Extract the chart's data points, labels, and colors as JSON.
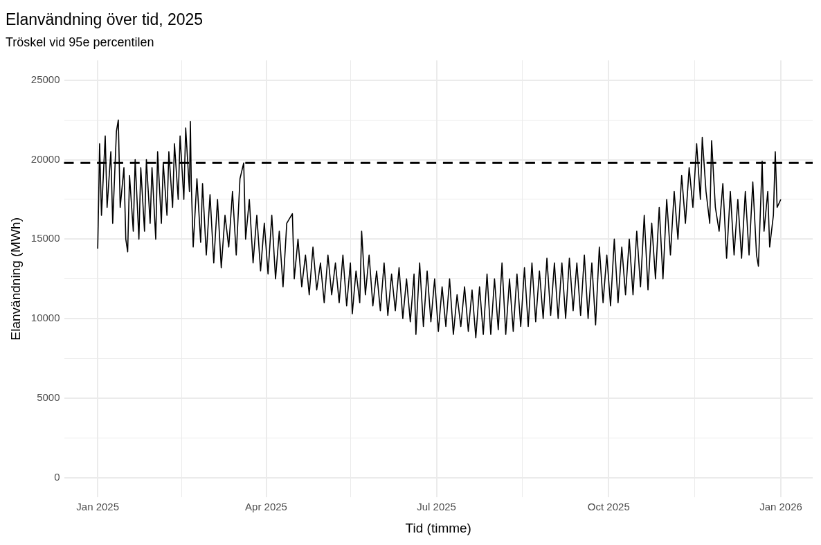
{
  "chart_data": {
    "type": "line",
    "title": "Elanvändning över tid, 2025",
    "subtitle": "Tröskel vid 95e percentilen",
    "xlabel": "Tid (timme)",
    "ylabel": "Elanvändning (MWh)",
    "xlim": [
      "2024-12-14",
      "2026-01-18"
    ],
    "ylim": [
      -1250,
      26250
    ],
    "xticks": [
      {
        "value": "2025-01-01",
        "label": "Jan 2025"
      },
      {
        "value": "2025-02-15",
        "label": null
      },
      {
        "value": "2025-04-01",
        "label": "Apr 2025"
      },
      {
        "value": "2025-05-16",
        "label": null
      },
      {
        "value": "2025-07-01",
        "label": "Jul 2025"
      },
      {
        "value": "2025-08-16",
        "label": null
      },
      {
        "value": "2025-10-01",
        "label": "Oct 2025"
      },
      {
        "value": "2025-11-16",
        "label": null
      },
      {
        "value": "2026-01-01",
        "label": "Jan 2026"
      }
    ],
    "yticks": [
      0,
      {
        "value": 2500,
        "label": null
      },
      5000,
      {
        "value": 7500,
        "label": null
      },
      10000,
      {
        "value": 12500,
        "label": null
      },
      15000,
      {
        "value": 17500,
        "label": null
      },
      20000,
      {
        "value": 22500,
        "label": null
      },
      25000
    ],
    "grid": true,
    "marker": "none",
    "line_style": "solid",
    "ref_lines": [
      {
        "axis": "y",
        "value": 19800,
        "color": "#000000",
        "line_style": "dashed"
      }
    ],
    "series": [
      {
        "color": "#000000",
        "x": [
          "2025-01-01T00:00",
          "2025-01-01T12:00",
          "2025-01-02",
          "2025-01-03",
          "2025-01-05",
          "2025-01-06",
          "2025-01-08",
          "2025-01-09",
          "2025-01-11",
          "2025-01-12",
          "2025-01-13",
          "2025-01-15",
          "2025-01-16",
          "2025-01-17",
          "2025-01-18",
          "2025-01-20",
          "2025-01-21",
          "2025-01-23",
          "2025-01-24",
          "2025-01-26",
          "2025-01-27",
          "2025-01-29",
          "2025-01-30",
          "2025-02-01",
          "2025-02-02",
          "2025-02-04",
          "2025-02-05",
          "2025-02-07",
          "2025-02-08",
          "2025-02-10",
          "2025-02-11",
          "2025-02-13",
          "2025-02-14",
          "2025-02-16",
          "2025-02-17",
          "2025-02-19",
          "2025-02-19T12:00",
          "2025-02-20",
          "2025-02-21",
          "2025-02-23",
          "2025-02-25",
          "2025-02-26",
          "2025-02-28",
          "2025-03-02",
          "2025-03-04",
          "2025-03-06",
          "2025-03-08",
          "2025-03-10",
          "2025-03-12",
          "2025-03-14",
          "2025-03-16",
          "2025-03-18",
          "2025-03-20",
          "2025-03-21",
          "2025-03-23",
          "2025-03-25",
          "2025-03-27",
          "2025-03-29",
          "2025-03-31",
          "2025-04-02",
          "2025-04-04",
          "2025-04-06",
          "2025-04-08",
          "2025-04-10",
          "2025-04-12",
          "2025-04-15",
          "2025-04-16",
          "2025-04-18",
          "2025-04-20",
          "2025-04-22",
          "2025-04-24",
          "2025-04-26",
          "2025-04-28",
          "2025-04-30",
          "2025-05-02",
          "2025-05-04",
          "2025-05-06",
          "2025-05-08",
          "2025-05-10",
          "2025-05-12",
          "2025-05-14",
          "2025-05-16",
          "2025-05-17",
          "2025-05-19",
          "2025-05-21",
          "2025-05-22",
          "2025-05-24",
          "2025-05-26",
          "2025-05-28",
          "2025-05-30",
          "2025-06-01",
          "2025-06-03",
          "2025-06-05",
          "2025-06-07",
          "2025-06-09",
          "2025-06-11",
          "2025-06-13",
          "2025-06-15",
          "2025-06-17",
          "2025-06-19",
          "2025-06-20",
          "2025-06-22",
          "2025-06-24",
          "2025-06-26",
          "2025-06-28",
          "2025-06-30",
          "2025-07-02",
          "2025-07-04",
          "2025-07-06",
          "2025-07-08",
          "2025-07-10",
          "2025-07-12",
          "2025-07-14",
          "2025-07-16",
          "2025-07-18",
          "2025-07-20",
          "2025-07-22",
          "2025-07-24",
          "2025-07-26",
          "2025-07-28",
          "2025-07-30",
          "2025-08-01",
          "2025-08-03",
          "2025-08-05",
          "2025-08-07",
          "2025-08-09",
          "2025-08-11",
          "2025-08-13",
          "2025-08-15",
          "2025-08-17",
          "2025-08-19",
          "2025-08-21",
          "2025-08-23",
          "2025-08-25",
          "2025-08-27",
          "2025-08-29",
          "2025-08-31",
          "2025-09-02",
          "2025-09-04",
          "2025-09-06",
          "2025-09-08",
          "2025-09-10",
          "2025-09-12",
          "2025-09-14",
          "2025-09-16",
          "2025-09-18",
          "2025-09-20",
          "2025-09-22",
          "2025-09-24",
          "2025-09-26",
          "2025-09-28",
          "2025-09-30",
          "2025-10-02",
          "2025-10-04",
          "2025-10-06",
          "2025-10-08",
          "2025-10-10",
          "2025-10-12",
          "2025-10-14",
          "2025-10-16",
          "2025-10-18",
          "2025-10-20",
          "2025-10-22",
          "2025-10-24",
          "2025-10-26",
          "2025-10-28",
          "2025-10-30",
          "2025-11-01",
          "2025-11-03",
          "2025-11-05",
          "2025-11-07",
          "2025-11-09",
          "2025-11-11",
          "2025-11-13",
          "2025-11-15",
          "2025-11-17",
          "2025-11-19",
          "2025-11-20",
          "2025-11-22",
          "2025-11-24",
          "2025-11-25",
          "2025-11-27",
          "2025-11-29",
          "2025-12-01",
          "2025-12-03",
          "2025-12-05",
          "2025-12-07",
          "2025-12-09",
          "2025-12-11",
          "2025-12-13",
          "2025-12-15",
          "2025-12-17",
          "2025-12-19",
          "2025-12-20",
          "2025-12-22",
          "2025-12-23",
          "2025-12-25",
          "2025-12-26",
          "2025-12-28",
          "2025-12-29",
          "2025-12-30",
          "2025-12-31T23:00"
        ],
        "values": [
          14400,
          17500,
          21000,
          16500,
          21500,
          17000,
          20500,
          16000,
          21800,
          22500,
          17000,
          19500,
          15000,
          14200,
          19000,
          15500,
          20000,
          15000,
          19500,
          15500,
          20000,
          16000,
          19500,
          15000,
          20500,
          16000,
          19800,
          16500,
          20500,
          17000,
          21000,
          17500,
          21500,
          17500,
          22000,
          18000,
          22400,
          18500,
          14500,
          18800,
          14800,
          18500,
          14000,
          17800,
          13500,
          17500,
          13200,
          16500,
          14500,
          18000,
          14000,
          18800,
          19800,
          15000,
          17500,
          13500,
          16500,
          13000,
          16000,
          12800,
          16500,
          12500,
          15500,
          12000,
          16000,
          16600,
          12500,
          15000,
          12000,
          14000,
          11500,
          14500,
          11800,
          13500,
          11000,
          14000,
          11500,
          13500,
          11000,
          14000,
          10800,
          13500,
          10300,
          13000,
          11000,
          15500,
          11500,
          14000,
          10800,
          13000,
          10500,
          13500,
          10200,
          12800,
          10500,
          13200,
          10000,
          12500,
          9800,
          12800,
          9000,
          13500,
          9500,
          13000,
          9800,
          12500,
          9200,
          12000,
          9500,
          12500,
          9000,
          11500,
          9500,
          12000,
          9200,
          11800,
          8800,
          12000,
          9000,
          12800,
          9000,
          12500,
          9300,
          13500,
          9000,
          12500,
          9200,
          12800,
          9500,
          13200,
          9500,
          13500,
          9800,
          13000,
          10000,
          13800,
          10200,
          13500,
          10000,
          13500,
          10000,
          13800,
          10500,
          13500,
          10200,
          14000,
          10000,
          13500,
          9600,
          14500,
          11000,
          14000,
          10800,
          15000,
          11000,
          14500,
          11500,
          15000,
          11500,
          15500,
          12000,
          16500,
          11800,
          16000,
          12500,
          17000,
          12500,
          17500,
          14000,
          18000,
          15000,
          19000,
          16000,
          19500,
          17000,
          21000,
          17500,
          21400,
          18000,
          16000,
          21200,
          17000,
          15500,
          18500,
          13800,
          18000,
          14000,
          17500,
          13800,
          18000,
          14000,
          18600,
          14000,
          13300,
          19900,
          15500,
          18000,
          14500,
          16500,
          20500,
          17000,
          17500
        ]
      }
    ]
  }
}
